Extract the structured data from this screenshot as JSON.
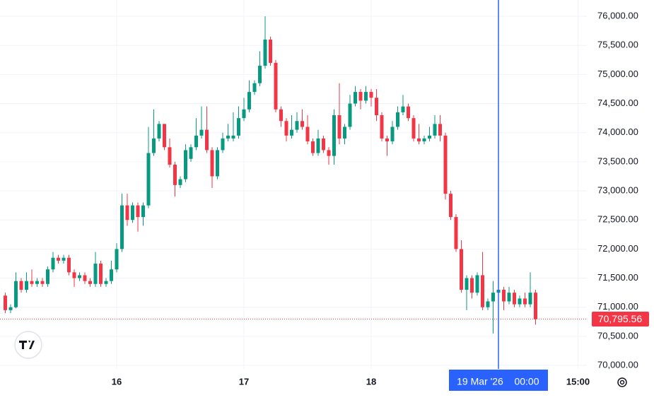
{
  "chart_data": {
    "type": "candlestick",
    "x": [
      "2026-03-15 03:00",
      "2026-03-15 04:00",
      "2026-03-15 05:00",
      "2026-03-15 06:00",
      "2026-03-15 07:00",
      "2026-03-15 08:00",
      "2026-03-15 09:00",
      "2026-03-15 10:00",
      "2026-03-15 11:00",
      "2026-03-15 12:00",
      "2026-03-15 13:00",
      "2026-03-15 14:00",
      "2026-03-15 15:00",
      "2026-03-15 16:00",
      "2026-03-15 17:00",
      "2026-03-15 18:00",
      "2026-03-15 19:00",
      "2026-03-15 20:00",
      "2026-03-15 21:00",
      "2026-03-15 22:00",
      "2026-03-15 23:00",
      "2026-03-16 00:00",
      "2026-03-16 01:00",
      "2026-03-16 02:00",
      "2026-03-16 03:00",
      "2026-03-16 04:00",
      "2026-03-16 05:00",
      "2026-03-16 06:00",
      "2026-03-16 07:00",
      "2026-03-16 08:00",
      "2026-03-16 09:00",
      "2026-03-16 10:00",
      "2026-03-16 11:00",
      "2026-03-16 12:00",
      "2026-03-16 13:00",
      "2026-03-16 14:00",
      "2026-03-16 15:00",
      "2026-03-16 16:00",
      "2026-03-16 17:00",
      "2026-03-16 18:00",
      "2026-03-16 19:00",
      "2026-03-16 20:00",
      "2026-03-16 21:00",
      "2026-03-16 22:00",
      "2026-03-16 23:00",
      "2026-03-17 00:00",
      "2026-03-17 01:00",
      "2026-03-17 02:00",
      "2026-03-17 03:00",
      "2026-03-17 04:00",
      "2026-03-17 05:00",
      "2026-03-17 06:00",
      "2026-03-17 07:00",
      "2026-03-17 08:00",
      "2026-03-17 09:00",
      "2026-03-17 10:00",
      "2026-03-17 11:00",
      "2026-03-17 12:00",
      "2026-03-17 13:00",
      "2026-03-17 14:00",
      "2026-03-17 15:00",
      "2026-03-17 16:00",
      "2026-03-17 17:00",
      "2026-03-17 18:00",
      "2026-03-17 19:00",
      "2026-03-17 20:00",
      "2026-03-17 21:00",
      "2026-03-17 22:00",
      "2026-03-17 23:00",
      "2026-03-18 00:00",
      "2026-03-18 01:00",
      "2026-03-18 02:00",
      "2026-03-18 03:00",
      "2026-03-18 04:00",
      "2026-03-18 05:00",
      "2026-03-18 06:00",
      "2026-03-18 07:00",
      "2026-03-18 08:00",
      "2026-03-18 09:00",
      "2026-03-18 10:00",
      "2026-03-18 11:00",
      "2026-03-18 12:00",
      "2026-03-18 13:00",
      "2026-03-18 14:00",
      "2026-03-18 15:00",
      "2026-03-18 16:00",
      "2026-03-18 17:00",
      "2026-03-18 18:00",
      "2026-03-18 19:00",
      "2026-03-18 20:00",
      "2026-03-18 21:00",
      "2026-03-18 22:00",
      "2026-03-18 23:00",
      "2026-03-19 00:00",
      "2026-03-19 01:00",
      "2026-03-19 02:00",
      "2026-03-19 03:00",
      "2026-03-19 04:00",
      "2026-03-19 05:00",
      "2026-03-19 06:00",
      "2026-03-19 07:00"
    ],
    "open": [
      71200,
      70950,
      71000,
      71450,
      71300,
      71450,
      71400,
      71450,
      71400,
      71650,
      71850,
      71800,
      71850,
      71600,
      71500,
      71550,
      71450,
      71400,
      71750,
      71400,
      71450,
      71650,
      72000,
      72750,
      72500,
      72750,
      72550,
      72750,
      73650,
      73900,
      74150,
      73750,
      73450,
      73100,
      73200,
      73550,
      73750,
      73950,
      74050,
      73700,
      73250,
      73700,
      73900,
      73900,
      73950,
      74250,
      74400,
      74700,
      74850,
      75150,
      75600,
      75200,
      74400,
      74200,
      73950,
      74050,
      74200,
      74100,
      73850,
      73650,
      73900,
      73700,
      73600,
      74300,
      73900,
      74100,
      74500,
      74700,
      74550,
      74700,
      74600,
      74300,
      73900,
      73850,
      74100,
      74350,
      74450,
      74250,
      73900,
      73850,
      73900,
      73950,
      74150,
      73950,
      72950,
      72550,
      72000,
      71300,
      71500,
      71250,
      71550,
      71000,
      71100,
      71250,
      71300,
      71100,
      71250,
      71050,
      71150,
      71050,
      71250
    ],
    "high": [
      71250,
      71050,
      71600,
      71500,
      71600,
      71650,
      71500,
      71500,
      71700,
      71950,
      71900,
      71900,
      71900,
      71650,
      71600,
      71600,
      71500,
      71950,
      71800,
      71500,
      71800,
      72100,
      72950,
      72950,
      72800,
      72800,
      72800,
      74100,
      74400,
      74200,
      74150,
      73900,
      73500,
      73250,
      73800,
      73800,
      74250,
      74450,
      74450,
      73750,
      73750,
      74000,
      74150,
      74350,
      74450,
      74600,
      74900,
      74900,
      75400,
      76000,
      75650,
      75250,
      74450,
      74250,
      74300,
      74350,
      74400,
      74300,
      73900,
      74050,
      73950,
      73750,
      74400,
      74850,
      74150,
      74650,
      74800,
      74750,
      74800,
      74750,
      74750,
      74350,
      73950,
      74200,
      74450,
      74650,
      74500,
      74300,
      74150,
      73950,
      74100,
      74300,
      74300,
      74000,
      73000,
      72600,
      72150,
      71550,
      71550,
      71600,
      71950,
      71150,
      71450,
      71350,
      71350,
      71350,
      71300,
      71200,
      71250,
      71600,
      71300
    ],
    "low": [
      70900,
      70900,
      70980,
      71250,
      71250,
      71350,
      71350,
      71350,
      71350,
      71600,
      71750,
      71750,
      71550,
      71350,
      71450,
      71400,
      71350,
      71350,
      71350,
      71350,
      71400,
      71600,
      71950,
      72400,
      72450,
      72300,
      72400,
      72700,
      73600,
      73850,
      73700,
      73400,
      72900,
      73050,
      73150,
      73500,
      73700,
      73900,
      73650,
      73050,
      73200,
      73650,
      73850,
      73850,
      73900,
      74200,
      74350,
      74650,
      74800,
      75100,
      75150,
      74350,
      74100,
      73850,
      73900,
      74000,
      74050,
      73800,
      73600,
      73600,
      73650,
      73450,
      73450,
      73800,
      73800,
      74050,
      74450,
      74400,
      74500,
      74450,
      74200,
      73850,
      73600,
      73800,
      74050,
      74300,
      74200,
      73850,
      73800,
      73800,
      73850,
      73900,
      73850,
      72850,
      72500,
      71950,
      71250,
      70950,
      71150,
      71200,
      70950,
      70950,
      70550,
      71050,
      70950,
      71050,
      71000,
      71000,
      71000,
      71000,
      70700
    ],
    "close": [
      70950,
      71000,
      71450,
      71300,
      71450,
      71400,
      71450,
      71400,
      71650,
      71850,
      71800,
      71850,
      71600,
      71500,
      71550,
      71450,
      71400,
      71750,
      71400,
      71450,
      71650,
      72000,
      72750,
      72500,
      72750,
      72550,
      72750,
      73650,
      73900,
      74150,
      73750,
      73450,
      73100,
      73200,
      73700,
      73750,
      73950,
      74050,
      73700,
      73250,
      73700,
      73900,
      73950,
      73950,
      74250,
      74400,
      74700,
      74850,
      75150,
      75600,
      75200,
      74400,
      74200,
      73950,
      74050,
      74200,
      74100,
      73850,
      73650,
      73900,
      73700,
      73600,
      74300,
      73900,
      74100,
      74500,
      74700,
      74550,
      74700,
      74600,
      74300,
      73900,
      73850,
      74100,
      74350,
      74450,
      74250,
      73900,
      73850,
      73900,
      73950,
      74150,
      73950,
      72950,
      72550,
      72000,
      71300,
      71500,
      71250,
      71550,
      71000,
      71100,
      71250,
      71300,
      71100,
      71250,
      71050,
      71150,
      71050,
      71250,
      70795.56
    ],
    "up_color": "#089981",
    "down_color": "#f23645",
    "xlim": [
      "2026-03-15 02:00",
      "2026-03-19 16:40"
    ],
    "xticks": [
      {
        "value": "2026-03-16 00:00",
        "label": "16"
      },
      {
        "value": "2026-03-17 00:00",
        "label": "17"
      },
      {
        "value": "2026-03-18 00:00",
        "label": "18"
      },
      {
        "value": "2026-03-19 15:00",
        "label": "15:00"
      }
    ],
    "ylim": [
      69940,
      76280
    ],
    "yticks": [
      {
        "value": 70000,
        "label": "70,000.00"
      },
      {
        "value": 70500,
        "label": "70,500.00"
      },
      {
        "value": 71000,
        "label": "71,000.00"
      },
      {
        "value": 71500,
        "label": "71,500.00"
      },
      {
        "value": 72000,
        "label": "72,000.00"
      },
      {
        "value": 72500,
        "label": "72,500.00"
      },
      {
        "value": 73000,
        "label": "73,000.00"
      },
      {
        "value": 73500,
        "label": "73,500.00"
      },
      {
        "value": 74000,
        "label": "74,000.00"
      },
      {
        "value": 74500,
        "label": "74,500.00"
      },
      {
        "value": 75000,
        "label": "75,000.00"
      },
      {
        "value": 75500,
        "label": "75,500.00"
      },
      {
        "value": 76000,
        "label": "76,000.00"
      }
    ],
    "grid": true,
    "last_price": {
      "value": 70795.56,
      "label": "70,795.56"
    },
    "crosshair": {
      "x": "2026-03-19 00:00",
      "date_label": "19 Mar '26",
      "time_label": "00:00",
      "color": "#2962ff"
    }
  }
}
